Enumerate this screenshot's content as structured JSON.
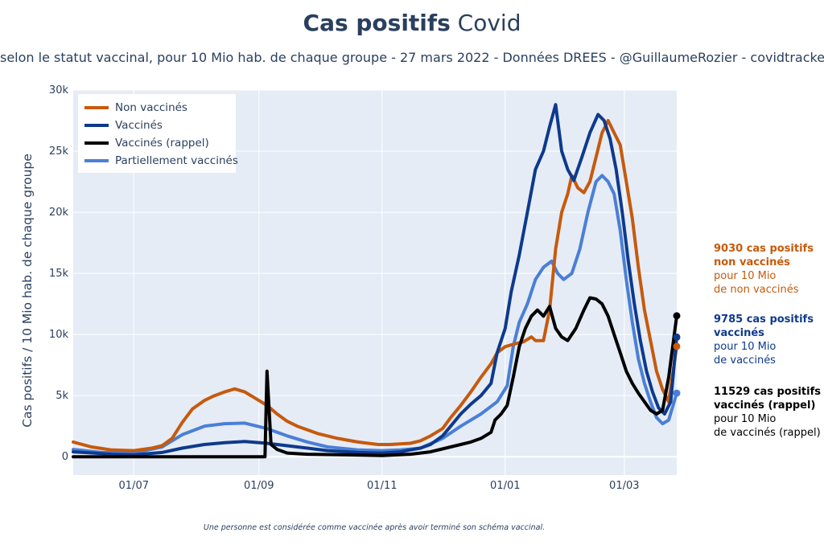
{
  "title_bold": "Cas positifs",
  "title_rest": "Covid",
  "subtitle": "selon le statut vaccinal, pour 10 Mio hab. de chaque groupe - 27 mars 2022 - Données DREES - @GuillaumeRozier - covidtracker.fr",
  "footnote": "Une personne est considérée comme vaccinée après avoir terminé son schéma vaccinal.",
  "chart_data": {
    "type": "line",
    "ylabel": "Cas positifs / 10 Mio hab. de chaque groupe",
    "ylim": [
      -1500,
      30000
    ],
    "xlim": [
      "2021-06-01",
      "2022-03-27"
    ],
    "y_ticks": [
      0,
      5000,
      10000,
      15000,
      20000,
      25000,
      30000
    ],
    "y_tick_labels": [
      "0",
      "5k",
      "10k",
      "15k",
      "20k",
      "25k",
      "30k"
    ],
    "x_ticks": [
      "2021-07-01",
      "2021-09-01",
      "2021-11-01",
      "2022-01-01",
      "2022-03-01"
    ],
    "x_tick_labels": [
      "01/07",
      "01/09",
      "01/11",
      "01/01",
      "01/03"
    ],
    "grid": true,
    "legend_position": "top-left",
    "series": [
      {
        "name": "Non vaccinés",
        "color": "#c65a0d",
        "points": [
          [
            "2021-06-01",
            1200
          ],
          [
            "2021-06-10",
            800
          ],
          [
            "2021-06-20",
            550
          ],
          [
            "2021-07-01",
            500
          ],
          [
            "2021-07-10",
            700
          ],
          [
            "2021-07-15",
            900
          ],
          [
            "2021-07-20",
            1500
          ],
          [
            "2021-07-25",
            2800
          ],
          [
            "2021-07-30",
            3900
          ],
          [
            "2021-08-05",
            4600
          ],
          [
            "2021-08-10",
            5000
          ],
          [
            "2021-08-15",
            5300
          ],
          [
            "2021-08-20",
            5550
          ],
          [
            "2021-08-25",
            5300
          ],
          [
            "2021-08-30",
            4800
          ],
          [
            "2021-09-05",
            4200
          ],
          [
            "2021-09-10",
            3500
          ],
          [
            "2021-09-15",
            2900
          ],
          [
            "2021-09-20",
            2500
          ],
          [
            "2021-09-30",
            1900
          ],
          [
            "2021-10-10",
            1500
          ],
          [
            "2021-10-20",
            1200
          ],
          [
            "2021-10-30",
            1000
          ],
          [
            "2021-11-05",
            1000
          ],
          [
            "2021-11-15",
            1100
          ],
          [
            "2021-11-20",
            1300
          ],
          [
            "2021-11-25",
            1700
          ],
          [
            "2021-12-01",
            2300
          ],
          [
            "2021-12-05",
            3200
          ],
          [
            "2021-12-10",
            4200
          ],
          [
            "2021-12-15",
            5300
          ],
          [
            "2021-12-20",
            6500
          ],
          [
            "2021-12-25",
            7600
          ],
          [
            "2021-12-28",
            8500
          ],
          [
            "2022-01-01",
            9000
          ],
          [
            "2022-01-05",
            9200
          ],
          [
            "2022-01-10",
            9400
          ],
          [
            "2022-01-14",
            9800
          ],
          [
            "2022-01-16",
            9500
          ],
          [
            "2022-01-20",
            9500
          ],
          [
            "2022-01-23",
            12000
          ],
          [
            "2022-01-26",
            17000
          ],
          [
            "2022-01-29",
            20000
          ],
          [
            "2022-02-01",
            21500
          ],
          [
            "2022-02-03",
            23000
          ],
          [
            "2022-02-06",
            22000
          ],
          [
            "2022-02-09",
            21600
          ],
          [
            "2022-02-12",
            22500
          ],
          [
            "2022-02-15",
            24500
          ],
          [
            "2022-02-18",
            26500
          ],
          [
            "2022-02-21",
            27500
          ],
          [
            "2022-02-24",
            26500
          ],
          [
            "2022-02-27",
            25500
          ],
          [
            "2022-03-02",
            22500
          ],
          [
            "2022-03-05",
            19500
          ],
          [
            "2022-03-08",
            15500
          ],
          [
            "2022-03-11",
            12000
          ],
          [
            "2022-03-14",
            9500
          ],
          [
            "2022-03-17",
            7000
          ],
          [
            "2022-03-20",
            5500
          ],
          [
            "2022-03-23",
            4500
          ],
          [
            "2022-03-27",
            9030
          ]
        ]
      },
      {
        "name": "Vaccinés",
        "color": "#0e3a8c",
        "points": [
          [
            "2021-06-01",
            400
          ],
          [
            "2021-06-20",
            200
          ],
          [
            "2021-07-01",
            150
          ],
          [
            "2021-07-15",
            350
          ],
          [
            "2021-07-25",
            700
          ],
          [
            "2021-08-05",
            1000
          ],
          [
            "2021-08-15",
            1150
          ],
          [
            "2021-08-25",
            1250
          ],
          [
            "2021-09-05",
            1100
          ],
          [
            "2021-09-15",
            900
          ],
          [
            "2021-09-25",
            700
          ],
          [
            "2021-10-05",
            500
          ],
          [
            "2021-10-20",
            350
          ],
          [
            "2021-11-01",
            300
          ],
          [
            "2021-11-10",
            400
          ],
          [
            "2021-11-20",
            700
          ],
          [
            "2021-11-25",
            1000
          ],
          [
            "2021-12-01",
            1700
          ],
          [
            "2021-12-05",
            2500
          ],
          [
            "2021-12-10",
            3500
          ],
          [
            "2021-12-15",
            4300
          ],
          [
            "2021-12-20",
            5000
          ],
          [
            "2021-12-25",
            6000
          ],
          [
            "2021-12-28",
            8500
          ],
          [
            "2022-01-01",
            10500
          ],
          [
            "2022-01-04",
            13500
          ],
          [
            "2022-01-08",
            16500
          ],
          [
            "2022-01-12",
            20000
          ],
          [
            "2022-01-16",
            23500
          ],
          [
            "2022-01-20",
            25000
          ],
          [
            "2022-01-23",
            27000
          ],
          [
            "2022-01-26",
            28800
          ],
          [
            "2022-01-29",
            25000
          ],
          [
            "2022-02-01",
            23500
          ],
          [
            "2022-02-04",
            22600
          ],
          [
            "2022-02-08",
            24500
          ],
          [
            "2022-02-12",
            26500
          ],
          [
            "2022-02-16",
            28000
          ],
          [
            "2022-02-19",
            27500
          ],
          [
            "2022-02-22",
            26000
          ],
          [
            "2022-02-25",
            23500
          ],
          [
            "2022-02-28",
            20000
          ],
          [
            "2022-03-03",
            16000
          ],
          [
            "2022-03-06",
            12500
          ],
          [
            "2022-03-09",
            9500
          ],
          [
            "2022-03-12",
            7000
          ],
          [
            "2022-03-15",
            5300
          ],
          [
            "2022-03-18",
            4000
          ],
          [
            "2022-03-21",
            3500
          ],
          [
            "2022-03-24",
            4500
          ],
          [
            "2022-03-27",
            9785
          ]
        ]
      },
      {
        "name": "Vaccinés (rappel)",
        "color": "#000000",
        "points": [
          [
            "2021-06-01",
            0
          ],
          [
            "2021-09-04",
            0
          ],
          [
            "2021-09-05",
            7000
          ],
          [
            "2021-09-07",
            1000
          ],
          [
            "2021-09-10",
            600
          ],
          [
            "2021-09-15",
            300
          ],
          [
            "2021-09-25",
            200
          ],
          [
            "2021-10-15",
            150
          ],
          [
            "2021-11-01",
            100
          ],
          [
            "2021-11-15",
            200
          ],
          [
            "2021-11-25",
            400
          ],
          [
            "2021-12-05",
            800
          ],
          [
            "2021-12-15",
            1200
          ],
          [
            "2021-12-20",
            1500
          ],
          [
            "2021-12-25",
            2000
          ],
          [
            "2021-12-27",
            3000
          ],
          [
            "2021-12-30",
            3500
          ],
          [
            "2022-01-02",
            4200
          ],
          [
            "2022-01-05",
            6500
          ],
          [
            "2022-01-08",
            9000
          ],
          [
            "2022-01-11",
            10500
          ],
          [
            "2022-01-14",
            11500
          ],
          [
            "2022-01-17",
            12000
          ],
          [
            "2022-01-20",
            11500
          ],
          [
            "2022-01-23",
            12300
          ],
          [
            "2022-01-26",
            10500
          ],
          [
            "2022-01-29",
            9800
          ],
          [
            "2022-02-01",
            9500
          ],
          [
            "2022-02-05",
            10500
          ],
          [
            "2022-02-09",
            12000
          ],
          [
            "2022-02-12",
            13000
          ],
          [
            "2022-02-15",
            12900
          ],
          [
            "2022-02-18",
            12500
          ],
          [
            "2022-02-21",
            11500
          ],
          [
            "2022-02-24",
            10000
          ],
          [
            "2022-02-27",
            8500
          ],
          [
            "2022-03-02",
            7000
          ],
          [
            "2022-03-05",
            6000
          ],
          [
            "2022-03-08",
            5200
          ],
          [
            "2022-03-11",
            4500
          ],
          [
            "2022-03-14",
            3800
          ],
          [
            "2022-03-17",
            3500
          ],
          [
            "2022-03-20",
            3800
          ],
          [
            "2022-03-23",
            6500
          ],
          [
            "2022-03-27",
            11529
          ]
        ]
      },
      {
        "name": "Partiellement vaccinés",
        "color": "#4b7fd6",
        "points": [
          [
            "2021-06-01",
            600
          ],
          [
            "2021-06-15",
            350
          ],
          [
            "2021-07-01",
            300
          ],
          [
            "2021-07-15",
            800
          ],
          [
            "2021-07-25",
            1800
          ],
          [
            "2021-08-05",
            2500
          ],
          [
            "2021-08-15",
            2700
          ],
          [
            "2021-08-25",
            2750
          ],
          [
            "2021-09-05",
            2300
          ],
          [
            "2021-09-15",
            1700
          ],
          [
            "2021-09-25",
            1200
          ],
          [
            "2021-10-05",
            800
          ],
          [
            "2021-10-20",
            550
          ],
          [
            "2021-11-01",
            500
          ],
          [
            "2021-11-10",
            550
          ],
          [
            "2021-11-20",
            700
          ],
          [
            "2021-12-01",
            1500
          ],
          [
            "2021-12-10",
            2500
          ],
          [
            "2021-12-20",
            3500
          ],
          [
            "2021-12-28",
            4500
          ],
          [
            "2022-01-02",
            5800
          ],
          [
            "2022-01-05",
            9000
          ],
          [
            "2022-01-08",
            11000
          ],
          [
            "2022-01-12",
            12500
          ],
          [
            "2022-01-16",
            14500
          ],
          [
            "2022-01-20",
            15500
          ],
          [
            "2022-01-24",
            16000
          ],
          [
            "2022-01-27",
            15000
          ],
          [
            "2022-01-30",
            14500
          ],
          [
            "2022-02-03",
            15000
          ],
          [
            "2022-02-07",
            17000
          ],
          [
            "2022-02-11",
            20000
          ],
          [
            "2022-02-15",
            22500
          ],
          [
            "2022-02-18",
            23000
          ],
          [
            "2022-02-21",
            22500
          ],
          [
            "2022-02-24",
            21500
          ],
          [
            "2022-02-27",
            18500
          ],
          [
            "2022-03-02",
            14500
          ],
          [
            "2022-03-05",
            11000
          ],
          [
            "2022-03-08",
            8000
          ],
          [
            "2022-03-11",
            6000
          ],
          [
            "2022-03-14",
            4500
          ],
          [
            "2022-03-17",
            3200
          ],
          [
            "2022-03-20",
            2700
          ],
          [
            "2022-03-23",
            3000
          ],
          [
            "2022-03-27",
            5200
          ]
        ]
      }
    ],
    "annotations": [
      {
        "bold": "9030 cas positifs",
        "bold2": "non vaccinés",
        "l1": "pour 10 Mio",
        "l2": "de non vaccinés",
        "color": "#c65a0d"
      },
      {
        "bold": "9785 cas positifs",
        "bold2": "vaccinés",
        "l1": "pour 10 Mio",
        "l2": "de vaccinés",
        "color": "#0e3a8c"
      },
      {
        "bold": "11529 cas positifs",
        "bold2": "vaccinés (rappel)",
        "l1": "pour 10 Mio",
        "l2": "de vaccinés (rappel)",
        "color": "#000000"
      }
    ]
  }
}
